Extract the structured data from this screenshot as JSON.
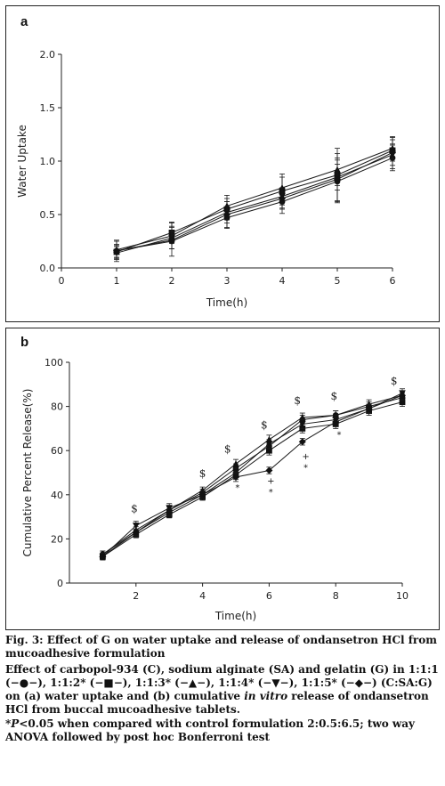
{
  "panels": [
    {
      "letter": "a",
      "chart_data": {
        "type": "line",
        "xlabel": "Time(h)",
        "ylabel": "Water Uptake",
        "xlim": [
          0,
          6
        ],
        "ylim": [
          0,
          2.0
        ],
        "xticks": [
          0,
          1,
          2,
          3,
          4,
          5,
          6
        ],
        "yticks": [
          0.0,
          0.5,
          1.0,
          1.5,
          2.0
        ],
        "ytick_labels": [
          "0.0",
          "0.5",
          "1.0",
          "1.5",
          "2.0"
        ],
        "grid": false,
        "x": [
          1,
          2,
          3,
          4,
          5,
          6
        ],
        "series": [
          {
            "marker": "circle",
            "values": [
              0.16,
              0.25,
              0.47,
              0.62,
              0.81,
              1.03
            ],
            "errors": [
              0.1,
              0.14,
              0.1,
              0.11,
              0.2,
              0.12
            ]
          },
          {
            "marker": "square",
            "values": [
              0.15,
              0.33,
              0.55,
              0.72,
              0.87,
              1.1
            ],
            "errors": [
              0.06,
              0.1,
              0.1,
              0.16,
              0.25,
              0.1
            ]
          },
          {
            "marker": "triangle-up",
            "values": [
              0.17,
              0.3,
              0.58,
              0.75,
              0.92,
              1.12
            ],
            "errors": [
              0.08,
              0.12,
              0.1,
              0.1,
              0.15,
              0.1
            ]
          },
          {
            "marker": "triangle-down",
            "values": [
              0.14,
              0.28,
              0.52,
              0.67,
              0.85,
              1.06
            ],
            "errors": [
              0.06,
              0.1,
              0.1,
              0.08,
              0.12,
              0.1
            ]
          },
          {
            "marker": "diamond",
            "values": [
              0.16,
              0.26,
              0.5,
              0.65,
              0.83,
              1.08
            ],
            "errors": [
              0.06,
              0.08,
              0.12,
              0.1,
              0.2,
              0.15
            ]
          }
        ]
      }
    },
    {
      "letter": "b",
      "chart_data": {
        "type": "line",
        "xlabel": "Time(h)",
        "ylabel": "Cumulative Percent Release(%)",
        "xlim": [
          0,
          10
        ],
        "ylim": [
          0,
          100
        ],
        "xticks": [
          2,
          4,
          6,
          8,
          10
        ],
        "yticks": [
          0,
          20,
          40,
          60,
          80,
          100
        ],
        "ytick_labels": [
          "0",
          "20",
          "40",
          "60",
          "80",
          "100"
        ],
        "grid": false,
        "x": [
          1,
          2,
          3,
          4,
          5,
          6,
          7,
          8,
          9,
          10
        ],
        "series": [
          {
            "marker": "circle",
            "values": [
              13,
              23,
              33,
              41,
              52,
              62,
              74,
              76,
              80,
              84
            ],
            "errors": [
              1.5,
              1.5,
              1.5,
              1.5,
              2,
              2,
              2,
              2,
              2,
              2
            ]
          },
          {
            "marker": "square",
            "values": [
              12,
              22,
              31,
              39,
              49,
              60,
              70,
              72,
              78,
              82
            ],
            "errors": [
              1.5,
              1.5,
              1.5,
              1.5,
              2,
              2,
              2,
              2,
              2,
              2
            ]
          },
          {
            "marker": "triangle-up",
            "values": [
              13,
              24,
              33,
              42,
              54,
              65,
              75,
              76,
              81,
              85
            ],
            "errors": [
              1.5,
              1.5,
              1.5,
              1.5,
              2,
              2,
              2,
              2,
              2,
              2
            ]
          },
          {
            "marker": "triangle-down",
            "values": [
              12,
              26,
              34,
              40,
              50,
              63,
              72,
              74,
              79,
              86
            ],
            "errors": [
              1.5,
              2,
              2,
              1.5,
              2,
              2,
              2,
              2,
              2,
              2
            ]
          },
          {
            "marker": "diamond",
            "values": [
              12,
              23,
              32,
              40,
              48,
              51,
              64,
              73,
              79,
              85
            ],
            "errors": [
              1.5,
              1.5,
              1.5,
              1.5,
              2,
              1.5,
              1.5,
              2,
              2,
              2
            ]
          }
        ],
        "annotations": [
          {
            "text": "$",
            "x": 1.95,
            "y": 32
          },
          {
            "text": "$",
            "x": 4.0,
            "y": 48
          },
          {
            "text": "$",
            "x": 4.75,
            "y": 59
          },
          {
            "text": "$",
            "x": 5.85,
            "y": 70
          },
          {
            "text": "$",
            "x": 6.85,
            "y": 81
          },
          {
            "text": "$",
            "x": 7.95,
            "y": 83
          },
          {
            "text": "$",
            "x": 9.75,
            "y": 90
          },
          {
            "text": "*",
            "x": 5.05,
            "y": 42
          },
          {
            "text": "+",
            "x": 6.05,
            "y": 45
          },
          {
            "text": "*",
            "x": 6.05,
            "y": 40
          },
          {
            "text": "+",
            "x": 7.1,
            "y": 56
          },
          {
            "text": "*",
            "x": 7.1,
            "y": 51
          },
          {
            "text": "*",
            "x": 8.1,
            "y": 66
          }
        ]
      }
    }
  ],
  "caption": {
    "title": "Fig. 3: Effect of G on water uptake and release of ondansetron HCl from mucoadhesive formulation",
    "body_1": "Effect of carbopol-934 (C), sodium alginate (SA) and gelatin (G) in 1:1:1 (−●−), 1:1:2* (−■−), 1:1:3* (−▲−), 1:1:4* (−▼−), 1:1:5* (−◆−) (C:SA:G) on (a) water uptake and (b) cumulative ",
    "body_italic": "in vitro",
    "body_2": " release of ondansetron HCl from buccal mucoadhesive tablets.",
    "note_p": "*P",
    "note_rest": "<0.05 when compared with control formulation 2:0.5:6.5; two way ANOVA followed by post hoc Bonferroni test"
  }
}
